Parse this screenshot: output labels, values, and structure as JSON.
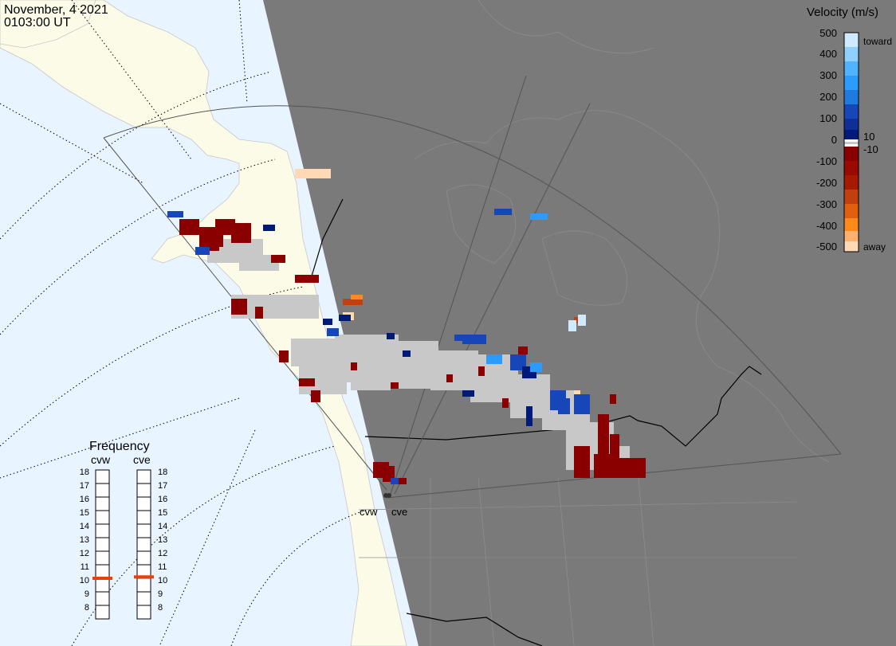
{
  "header": {
    "date": "November, 4 2021",
    "time": "0103:00 UT"
  },
  "stations": {
    "west": "cvw",
    "east": "cve"
  },
  "velocity_scale": {
    "title": "Velocity (m/s)",
    "ticks": [
      "500",
      "400",
      "300",
      "200",
      "100",
      "10",
      "0",
      "-10",
      "-100",
      "-200",
      "-300",
      "-400",
      "-500"
    ],
    "toward_label": "toward",
    "away_label": "away",
    "colors": {
      "toward_light": "#cfe9ff",
      "toward_mid": "#2b9bff",
      "toward_dark": "#1646b8",
      "toward_deep": "#001a7a",
      "ground": "#c8c8c8",
      "away_deep": "#8a0000",
      "away_mid": "#c24010",
      "away_orange": "#ff8a1c",
      "away_light": "#ffd8b6"
    }
  },
  "frequency_panel": {
    "title": "Frequency",
    "west_label": "cvw",
    "east_label": "cve",
    "ticks": [
      "18",
      "17",
      "16",
      "15",
      "14",
      "13",
      "12",
      "11",
      "10",
      "9",
      "8"
    ],
    "west_freq_mhz": 10.5,
    "east_freq_mhz": 10.6,
    "marker_color": "#e8400c"
  },
  "map_colors": {
    "ocean": "#e8f4ff",
    "land_day": "#fbfbe8",
    "night": "#7a7a7a",
    "borders": "#000000"
  }
}
